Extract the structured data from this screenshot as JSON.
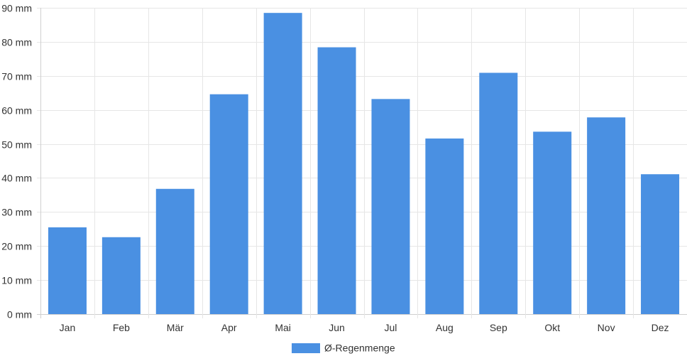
{
  "chart_data": {
    "type": "bar",
    "categories": [
      "Jan",
      "Feb",
      "Mär",
      "Apr",
      "Mai",
      "Jun",
      "Jul",
      "Aug",
      "Sep",
      "Okt",
      "Nov",
      "Dez"
    ],
    "series": [
      {
        "name": "Ø-Regenmenge",
        "color": "#4a90e2",
        "values": [
          25.5,
          22.6,
          36.8,
          64.6,
          88.5,
          78.4,
          63.2,
          51.6,
          70.9,
          53.6,
          57.8,
          41.1
        ]
      }
    ],
    "y_ticks": [
      "0 mm",
      "10 mm",
      "20 mm",
      "30 mm",
      "40 mm",
      "50 mm",
      "60 mm",
      "70 mm",
      "80 mm",
      "90 mm"
    ],
    "ylim": [
      0,
      90
    ],
    "grid": true,
    "legend_position": "bottom"
  }
}
